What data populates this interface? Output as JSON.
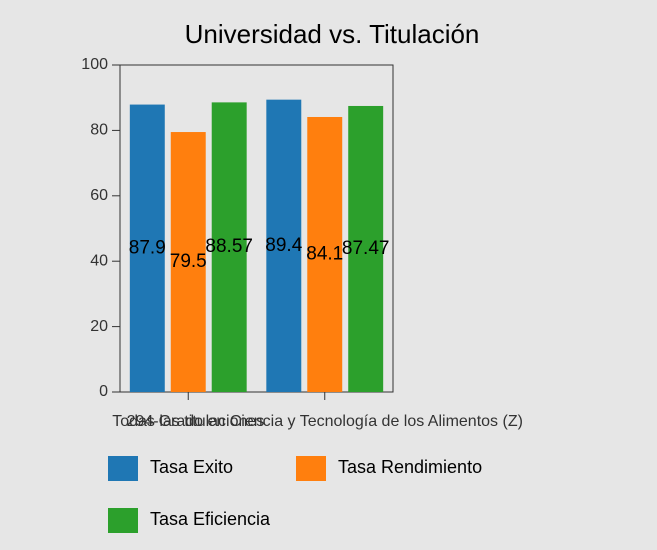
{
  "chart_data": {
    "type": "bar",
    "title": "Universidad vs. Titulación",
    "categories": [
      "Todas las titulaciones",
      "294-Grado en Ciencia y Tecnología de los Alimentos (Z)"
    ],
    "series": [
      {
        "name": "Tasa Exito",
        "color": "#1f77b4",
        "values": [
          87.9,
          89.4
        ]
      },
      {
        "name": "Tasa Rendimiento",
        "color": "#ff7f0e",
        "values": [
          79.5,
          84.1
        ]
      },
      {
        "name": "Tasa Eficiencia",
        "color": "#2ca02c",
        "values": [
          88.57,
          87.47
        ]
      }
    ],
    "ylim": [
      0,
      100
    ],
    "yticks": [
      0,
      20,
      40,
      60,
      80,
      100
    ]
  }
}
